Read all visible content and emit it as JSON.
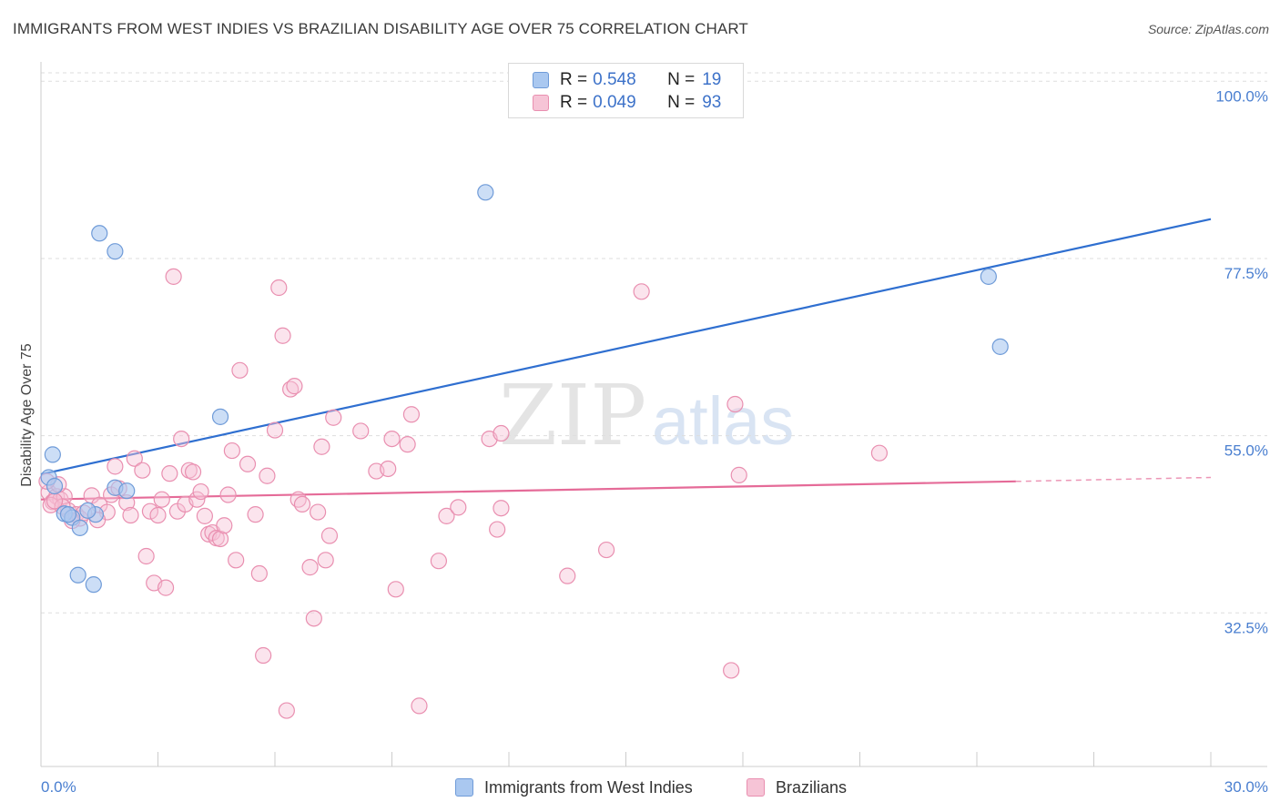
{
  "title": "IMMIGRANTS FROM WEST INDIES VS BRAZILIAN DISABILITY AGE OVER 75 CORRELATION CHART",
  "source": "Source: ZipAtlas.com",
  "watermark": {
    "zip": "ZIP",
    "atlas": "atlas"
  },
  "legend_top": [
    {
      "r_label": "R =",
      "r_value": "0.548",
      "n_label": "N =",
      "n_value": "19"
    },
    {
      "r_label": "R =",
      "r_value": "0.049",
      "n_label": "N =",
      "n_value": "93"
    }
  ],
  "legend_bottom": [
    {
      "label": "Immigrants from West Indies"
    },
    {
      "label": "Brazilians"
    }
  ],
  "colors": {
    "blue_fill": "#aac8f0",
    "blue_stroke": "#6f9bd8",
    "blue_line": "#2f6fd0",
    "pink_fill": "#f6c4d6",
    "pink_stroke": "#e98fb0",
    "pink_line": "#e56b98",
    "tick_label": "#4a7fd0",
    "grid": "#dddddd"
  },
  "chart_data": {
    "type": "scatter",
    "title": "IMMIGRANTS FROM WEST INDIES VS BRAZILIAN DISABILITY AGE OVER 75 CORRELATION CHART",
    "xlabel": "",
    "ylabel": "Disability Age Over 75",
    "xlim": [
      0,
      30
    ],
    "ylim": [
      13,
      102
    ],
    "x_tick_labels": [
      "0.0%",
      "30.0%"
    ],
    "y_ticks": [
      32.5,
      55.0,
      77.5,
      100.0
    ],
    "y_tick_labels": [
      "32.5%",
      "55.0%",
      "77.5%",
      "100.0%"
    ],
    "grid": "horizontal dashed",
    "legend_placement": "top-center",
    "series": [
      {
        "name": "Immigrants from West Indies",
        "points": [
          [
            0.3,
            52.6
          ],
          [
            0.2,
            49.7
          ],
          [
            0.35,
            48.6
          ],
          [
            0.6,
            45.1
          ],
          [
            0.8,
            44.6
          ],
          [
            1.0,
            43.3
          ],
          [
            1.4,
            45.0
          ],
          [
            1.9,
            48.4
          ],
          [
            2.2,
            48.0
          ],
          [
            0.95,
            37.3
          ],
          [
            1.35,
            36.1
          ],
          [
            1.5,
            80.7
          ],
          [
            1.9,
            78.4
          ],
          [
            4.6,
            57.4
          ],
          [
            11.4,
            85.9
          ],
          [
            24.3,
            75.2
          ],
          [
            24.6,
            66.3
          ],
          [
            0.7,
            45.0
          ],
          [
            1.2,
            45.5
          ]
        ],
        "trend": {
          "x": [
            0,
            30
          ],
          "y": [
            50.1,
            82.5
          ]
        }
      },
      {
        "name": "Brazilians",
        "points": [
          [
            0.2,
            47.8
          ],
          [
            0.3,
            46.6
          ],
          [
            0.4,
            47.3
          ],
          [
            0.5,
            46.9
          ],
          [
            0.6,
            47.3
          ],
          [
            0.7,
            45.5
          ],
          [
            0.9,
            45.0
          ],
          [
            1.0,
            44.5
          ],
          [
            1.1,
            45.2
          ],
          [
            1.3,
            47.4
          ],
          [
            1.5,
            46.2
          ],
          [
            1.7,
            45.3
          ],
          [
            1.8,
            47.5
          ],
          [
            1.9,
            51.1
          ],
          [
            2.0,
            48.3
          ],
          [
            2.2,
            46.5
          ],
          [
            2.3,
            44.9
          ],
          [
            2.4,
            52.1
          ],
          [
            2.6,
            50.6
          ],
          [
            2.7,
            39.7
          ],
          [
            2.8,
            45.4
          ],
          [
            2.9,
            36.3
          ],
          [
            3.0,
            44.9
          ],
          [
            3.1,
            46.9
          ],
          [
            3.2,
            35.7
          ],
          [
            3.3,
            50.2
          ],
          [
            3.4,
            75.2
          ],
          [
            3.5,
            45.4
          ],
          [
            3.6,
            54.6
          ],
          [
            3.7,
            46.3
          ],
          [
            3.8,
            50.6
          ],
          [
            3.9,
            50.4
          ],
          [
            4.0,
            46.9
          ],
          [
            4.1,
            47.9
          ],
          [
            4.2,
            44.8
          ],
          [
            4.3,
            42.5
          ],
          [
            4.4,
            42.7
          ],
          [
            4.5,
            42.0
          ],
          [
            4.6,
            41.9
          ],
          [
            4.7,
            43.6
          ],
          [
            4.8,
            47.5
          ],
          [
            4.9,
            53.1
          ],
          [
            5.0,
            39.2
          ],
          [
            5.1,
            63.3
          ],
          [
            5.3,
            51.4
          ],
          [
            5.5,
            45.0
          ],
          [
            5.6,
            37.5
          ],
          [
            5.8,
            49.9
          ],
          [
            5.7,
            27.1
          ],
          [
            6.0,
            55.7
          ],
          [
            6.1,
            73.8
          ],
          [
            6.2,
            67.7
          ],
          [
            6.3,
            20.1
          ],
          [
            6.4,
            60.9
          ],
          [
            6.5,
            61.3
          ],
          [
            6.6,
            46.9
          ],
          [
            6.7,
            46.3
          ],
          [
            6.9,
            38.3
          ],
          [
            7.0,
            31.8
          ],
          [
            7.1,
            45.3
          ],
          [
            7.2,
            53.6
          ],
          [
            7.3,
            39.2
          ],
          [
            7.4,
            42.3
          ],
          [
            7.5,
            57.3
          ],
          [
            8.2,
            55.6
          ],
          [
            8.6,
            50.5
          ],
          [
            8.9,
            50.8
          ],
          [
            9.0,
            54.6
          ],
          [
            9.1,
            35.5
          ],
          [
            9.4,
            53.9
          ],
          [
            9.5,
            57.7
          ],
          [
            9.7,
            20.7
          ],
          [
            10.2,
            39.1
          ],
          [
            10.4,
            44.8
          ],
          [
            10.7,
            45.9
          ],
          [
            11.5,
            54.6
          ],
          [
            11.8,
            55.3
          ],
          [
            11.7,
            43.1
          ],
          [
            11.8,
            45.8
          ],
          [
            13.5,
            37.2
          ],
          [
            14.5,
            40.5
          ],
          [
            15.4,
            73.3
          ],
          [
            17.7,
            25.2
          ],
          [
            17.8,
            59.0
          ],
          [
            17.9,
            50.0
          ],
          [
            21.5,
            52.8
          ],
          [
            0.25,
            46.2
          ],
          [
            0.45,
            48.8
          ],
          [
            0.15,
            49.2
          ],
          [
            0.55,
            46.0
          ],
          [
            0.8,
            44.2
          ],
          [
            1.45,
            44.3
          ],
          [
            0.35,
            46.7
          ]
        ],
        "trend": {
          "x": [
            0,
            25.0
          ],
          "y": [
            46.9,
            49.2
          ]
        },
        "trend_dashed": {
          "x": [
            25.0,
            30
          ],
          "y": [
            49.2,
            49.7
          ]
        }
      }
    ]
  }
}
